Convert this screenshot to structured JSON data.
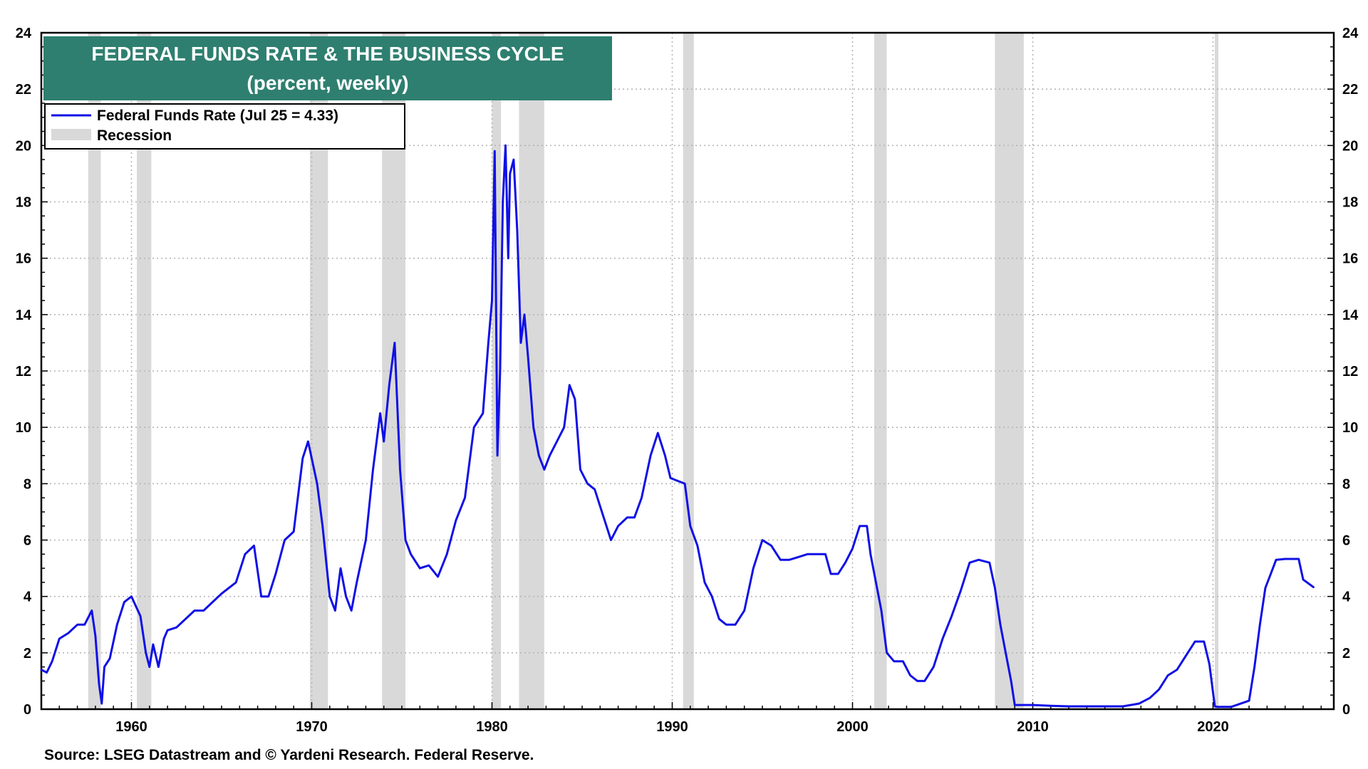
{
  "chart_data": {
    "type": "line",
    "title": "FEDERAL FUNDS RATE & THE BUSINESS CYCLE",
    "subtitle": "(percent, weekly)",
    "legend": {
      "placement": "top-left",
      "entries": [
        {
          "label": "Federal Funds Rate (Jul 25 = 4.33)",
          "kind": "line",
          "color": "#1010e6"
        },
        {
          "label": "Recession",
          "kind": "band",
          "color": "#d9d9d9"
        }
      ]
    },
    "source": "Source: LSEG Datastream and © Yardeni Research. Federal Reserve.",
    "xlim": [
      1955.0,
      2026.7
    ],
    "ylim": [
      0,
      24
    ],
    "x_ticks": [
      1960,
      1970,
      1980,
      1990,
      2000,
      2010,
      2020
    ],
    "y_ticks": [
      0,
      2,
      4,
      6,
      8,
      10,
      12,
      14,
      16,
      18,
      20,
      22,
      24
    ],
    "grid": true,
    "dual_y_axis": true,
    "colors": {
      "line": "#1010e6",
      "recession": "#d9d9d9",
      "title_bg": "#2e7f70",
      "grid": "#b5b5b5"
    },
    "recessions": [
      [
        1957.6,
        1958.3
      ],
      [
        1960.3,
        1961.1
      ],
      [
        1969.9,
        1970.9
      ],
      [
        1973.9,
        1975.2
      ],
      [
        1980.0,
        1980.5
      ],
      [
        1981.5,
        1982.9
      ],
      [
        1990.6,
        1991.2
      ],
      [
        2001.2,
        2001.9
      ],
      [
        2007.9,
        2009.5
      ],
      [
        2020.1,
        2020.3
      ]
    ],
    "series": [
      {
        "name": "Federal Funds Rate",
        "x": [
          1955.0,
          1955.3,
          1955.6,
          1956.0,
          1956.5,
          1957.0,
          1957.4,
          1957.8,
          1958.0,
          1958.2,
          1958.35,
          1958.5,
          1958.8,
          1959.2,
          1959.6,
          1960.0,
          1960.5,
          1960.8,
          1961.0,
          1961.2,
          1961.5,
          1961.8,
          1962.0,
          1962.5,
          1963.0,
          1963.5,
          1964.0,
          1965.0,
          1965.8,
          1966.3,
          1966.8,
          1967.2,
          1967.6,
          1968.0,
          1968.5,
          1969.0,
          1969.5,
          1969.8,
          1970.0,
          1970.3,
          1970.6,
          1971.0,
          1971.3,
          1971.6,
          1971.9,
          1972.2,
          1972.5,
          1973.0,
          1973.4,
          1973.8,
          1974.0,
          1974.3,
          1974.6,
          1974.9,
          1975.2,
          1975.5,
          1976.0,
          1976.5,
          1977.0,
          1977.5,
          1978.0,
          1978.5,
          1979.0,
          1979.5,
          1979.8,
          1980.0,
          1980.15,
          1980.3,
          1980.45,
          1980.6,
          1980.75,
          1980.9,
          1981.0,
          1981.2,
          1981.4,
          1981.6,
          1981.8,
          1982.0,
          1982.3,
          1982.6,
          1982.9,
          1983.2,
          1983.6,
          1984.0,
          1984.3,
          1984.6,
          1984.9,
          1985.3,
          1985.7,
          1986.1,
          1986.6,
          1987.0,
          1987.5,
          1987.9,
          1988.3,
          1988.8,
          1989.2,
          1989.6,
          1989.9,
          1990.3,
          1990.7,
          1991.0,
          1991.4,
          1991.8,
          1992.2,
          1992.6,
          1993.0,
          1993.5,
          1994.0,
          1994.5,
          1995.0,
          1995.5,
          1996.0,
          1996.5,
          1997.0,
          1997.5,
          1998.0,
          1998.5,
          1998.8,
          1999.2,
          1999.6,
          2000.0,
          2000.4,
          2000.8,
          2001.0,
          2001.3,
          2001.6,
          2001.9,
          2002.3,
          2002.8,
          2003.2,
          2003.6,
          2004.0,
          2004.5,
          2005.0,
          2005.5,
          2006.0,
          2006.5,
          2007.0,
          2007.6,
          2007.9,
          2008.2,
          2008.5,
          2008.8,
          2009.0,
          2009.3,
          2010.0,
          2011.0,
          2012.0,
          2013.0,
          2014.0,
          2015.0,
          2015.9,
          2016.5,
          2017.0,
          2017.5,
          2018.0,
          2018.5,
          2019.0,
          2019.5,
          2019.8,
          2020.1,
          2020.25,
          2020.5,
          2021.0,
          2022.0,
          2022.3,
          2022.6,
          2022.9,
          2023.2,
          2023.5,
          2024.0,
          2024.5,
          2024.75,
          2025.0,
          2025.57
        ],
        "y": [
          1.4,
          1.3,
          1.7,
          2.5,
          2.7,
          3.0,
          3.0,
          3.5,
          2.6,
          0.9,
          0.2,
          1.5,
          1.8,
          3.0,
          3.8,
          4.0,
          3.3,
          2.0,
          1.5,
          2.3,
          1.5,
          2.5,
          2.8,
          2.9,
          3.2,
          3.5,
          3.5,
          4.1,
          4.5,
          5.5,
          5.8,
          4.0,
          4.0,
          4.8,
          6.0,
          6.3,
          8.9,
          9.5,
          8.9,
          8.0,
          6.5,
          4.0,
          3.5,
          5.0,
          4.0,
          3.5,
          4.5,
          6.0,
          8.5,
          10.5,
          9.5,
          11.5,
          13.0,
          8.5,
          6.0,
          5.5,
          5.0,
          5.1,
          4.7,
          5.5,
          6.7,
          7.5,
          10.0,
          10.5,
          13.0,
          14.5,
          19.8,
          9.0,
          12.0,
          18.0,
          20.0,
          16.0,
          19.0,
          19.5,
          17.0,
          13.0,
          14.0,
          12.5,
          10.0,
          9.0,
          8.5,
          9.0,
          9.5,
          10.0,
          11.5,
          11.0,
          8.5,
          8.0,
          7.8,
          7.0,
          6.0,
          6.5,
          6.8,
          6.8,
          7.5,
          9.0,
          9.8,
          9.0,
          8.2,
          8.1,
          8.0,
          6.5,
          5.8,
          4.5,
          4.0,
          3.2,
          3.0,
          3.0,
          3.5,
          5.0,
          6.0,
          5.8,
          5.3,
          5.3,
          5.4,
          5.5,
          5.5,
          5.5,
          4.8,
          4.8,
          5.2,
          5.7,
          6.5,
          6.5,
          5.5,
          4.5,
          3.5,
          2.0,
          1.7,
          1.7,
          1.2,
          1.0,
          1.0,
          1.5,
          2.5,
          3.3,
          4.2,
          5.2,
          5.3,
          5.2,
          4.3,
          3.0,
          2.0,
          1.0,
          0.15,
          0.15,
          0.15,
          0.12,
          0.1,
          0.1,
          0.1,
          0.1,
          0.2,
          0.4,
          0.7,
          1.2,
          1.4,
          1.9,
          2.4,
          2.4,
          1.6,
          0.1,
          0.08,
          0.08,
          0.08,
          0.3,
          1.5,
          3.0,
          4.3,
          4.8,
          5.3,
          5.33,
          5.33,
          5.33,
          4.6,
          4.33
        ]
      }
    ]
  }
}
